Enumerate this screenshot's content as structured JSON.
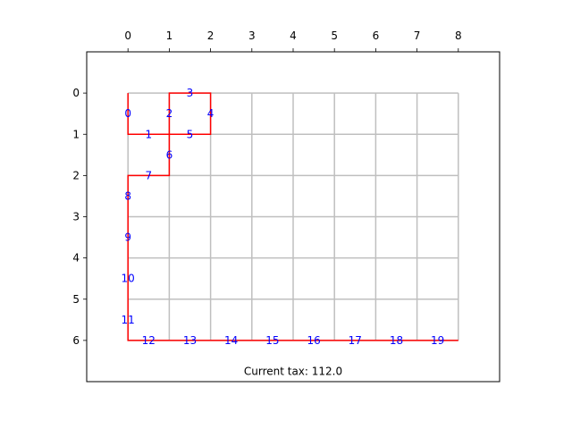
{
  "chart_data": {
    "type": "grid-path",
    "x_ticks": [
      "0",
      "1",
      "2",
      "3",
      "4",
      "5",
      "6",
      "7",
      "8"
    ],
    "y_ticks": [
      "0",
      "1",
      "2",
      "3",
      "4",
      "5",
      "6"
    ],
    "xlim": [
      -1,
      9
    ],
    "ylim": [
      7,
      -1
    ],
    "x_axis_position": "top",
    "y_axis_inverted": true,
    "grid": {
      "cols": 8,
      "rows": 6,
      "color": "#bfbfbf"
    },
    "path": {
      "color": "#ff0000",
      "points": [
        [
          0,
          0
        ],
        [
          0,
          1
        ],
        [
          1,
          1
        ],
        [
          1,
          0
        ],
        [
          2,
          0
        ],
        [
          2,
          1
        ],
        [
          1,
          1
        ],
        [
          1,
          2
        ],
        [
          0,
          2
        ],
        [
          0,
          6
        ],
        [
          8,
          6
        ]
      ]
    },
    "edge_labels": {
      "color": "#0000ff",
      "items": [
        {
          "text": "0",
          "x": 0,
          "y": 0.5
        },
        {
          "text": "1",
          "x": 0.5,
          "y": 1
        },
        {
          "text": "2",
          "x": 1,
          "y": 0.5
        },
        {
          "text": "3",
          "x": 1.5,
          "y": 0
        },
        {
          "text": "4",
          "x": 2,
          "y": 0.5
        },
        {
          "text": "5",
          "x": 1.5,
          "y": 1
        },
        {
          "text": "6",
          "x": 1,
          "y": 1.5
        },
        {
          "text": "7",
          "x": 0.5,
          "y": 2
        },
        {
          "text": "8",
          "x": 0,
          "y": 2.5
        },
        {
          "text": "9",
          "x": 0,
          "y": 3.5
        },
        {
          "text": "10",
          "x": 0,
          "y": 4.5
        },
        {
          "text": "11",
          "x": 0,
          "y": 5.5
        },
        {
          "text": "12",
          "x": 0.5,
          "y": 6
        },
        {
          "text": "13",
          "x": 1.5,
          "y": 6
        },
        {
          "text": "14",
          "x": 2.5,
          "y": 6
        },
        {
          "text": "15",
          "x": 3.5,
          "y": 6
        },
        {
          "text": "16",
          "x": 4.5,
          "y": 6
        },
        {
          "text": "17",
          "x": 5.5,
          "y": 6
        },
        {
          "text": "18",
          "x": 6.5,
          "y": 6
        },
        {
          "text": "19",
          "x": 7.5,
          "y": 6
        }
      ]
    },
    "status_label": "Current tax: 112.0",
    "status_position": {
      "x": 4,
      "y": 6.75
    }
  }
}
